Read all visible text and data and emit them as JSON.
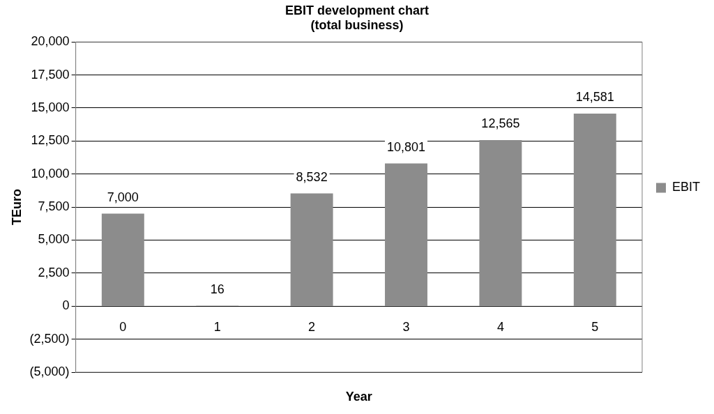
{
  "chart_data": {
    "type": "bar",
    "title": [
      "EBIT development chart",
      "(total business)"
    ],
    "xlabel": "Year",
    "ylabel": "TEuro",
    "categories": [
      "0",
      "1",
      "2",
      "3",
      "4",
      "5"
    ],
    "series": [
      {
        "name": "EBIT",
        "color": "#8c8c8c",
        "values": [
          7000,
          16,
          8532,
          10801,
          12565,
          14581
        ],
        "value_labels": [
          "7,000",
          "16",
          "8,532",
          "10,801",
          "12,565",
          "14,581"
        ]
      }
    ],
    "ylim": [
      -5000,
      20000
    ],
    "yticks": [
      {
        "value": -5000,
        "label": "(5,000)"
      },
      {
        "value": -2500,
        "label": "(2,500)"
      },
      {
        "value": 0,
        "label": "0"
      },
      {
        "value": 2500,
        "label": "2,500"
      },
      {
        "value": 5000,
        "label": "5,000"
      },
      {
        "value": 7500,
        "label": "7,500"
      },
      {
        "value": 10000,
        "label": "10,000"
      },
      {
        "value": 12500,
        "label": "12,500"
      },
      {
        "value": 15000,
        "label": "15,000"
      },
      {
        "value": 17500,
        "label": "17,500"
      },
      {
        "value": 20000,
        "label": "20,000"
      }
    ],
    "grid": "y",
    "legend": "right"
  }
}
